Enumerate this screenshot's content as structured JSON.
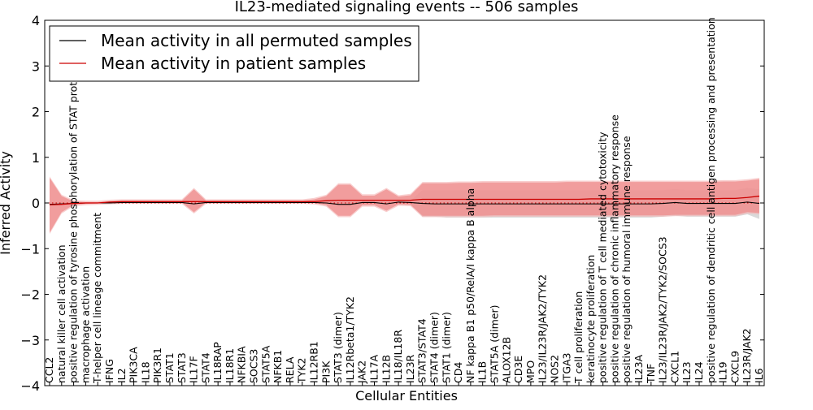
{
  "chart_data": {
    "type": "line",
    "title": "IL23-mediated signaling events -- 506 samples",
    "xlabel": "Cellular Entities",
    "ylabel": "Inferred Activity",
    "ylim": [
      -4,
      4
    ],
    "yticks": [
      "−4",
      "−3",
      "−2",
      "−1",
      "0",
      "1",
      "2",
      "3",
      "4"
    ],
    "ytick_values": [
      -4,
      -3,
      -2,
      -1,
      0,
      1,
      2,
      3,
      4
    ],
    "grid": false,
    "legend_position": "top-left",
    "categories": [
      "CCL2",
      "natural killer cell activation",
      "positive regulation of tyrosine phosphorylation of STAT protein",
      "macrophage activation",
      "T-helper cell lineage commitment",
      "IFNG",
      "IL2",
      "PIK3CA",
      "IL18",
      "PIK3R1",
      "STAT1",
      "STAT3",
      "IL17F",
      "STAT4",
      "IL18RAP",
      "IL18R1",
      "NFKBIA",
      "SOCS3",
      "STAT5A",
      "NFKB1",
      "RELA",
      "TYK2",
      "IL12RB1",
      "PI3K",
      "STAT3 (dimer)",
      "IL12Rbeta1/TYK2",
      "JAK2",
      "IL17A",
      "IL12B",
      "IL18/IL18R",
      "IL23R",
      "STAT3/STAT4",
      "STAT4 (dimer)",
      "STAT1 (dimer)",
      "CD4",
      "NF kappa B1 p50/RelA/I kappa B alpha",
      "IL1B",
      "STAT5A (dimer)",
      "ALOX12B",
      "CD3E",
      "MPO",
      "IL23/IL23R/JAK2/TYK2",
      "NOS2",
      "ITGA3",
      "T cell proliferation",
      "keratinocyte proliferation",
      "positive regulation of T cell mediated cytotoxicity",
      "positive regulation of chronic inflammatory response",
      "positive regulation of humoral immune response",
      "IL23A",
      "TNF",
      "IL23/IL23R/JAK2/TYK2/SOCS3",
      "CXCL1",
      "IL23",
      "IL24",
      "positive regulation of dendritic cell antigen processing and presentation",
      "IL19",
      "CXCL9",
      "IL23R/JAK2",
      "IL6"
    ],
    "series": [
      {
        "name": "Mean activity in all permuted samples",
        "color": "#000000",
        "values": [
          -0.03,
          -0.02,
          -0.01,
          0,
          0,
          0,
          0.01,
          0.01,
          0.01,
          0.01,
          0.01,
          0.01,
          -0.02,
          0.01,
          0.01,
          0.01,
          0.01,
          0.01,
          0.01,
          0.01,
          0.01,
          0.01,
          0.01,
          0,
          -0.03,
          -0.03,
          0.01,
          0.01,
          -0.02,
          0.02,
          0.01,
          -0.01,
          -0.02,
          -0.02,
          -0.02,
          -0.02,
          -0.02,
          -0.02,
          -0.02,
          -0.02,
          -0.02,
          -0.02,
          -0.02,
          -0.02,
          -0.02,
          -0.02,
          -0.02,
          -0.02,
          -0.02,
          -0.02,
          -0.02,
          -0.01,
          0.01,
          -0.01,
          -0.01,
          -0.01,
          -0.01,
          -0.01,
          0.02,
          -0.01
        ],
        "band_lower": [
          -0.06,
          -0.05,
          -0.02,
          -0.01,
          -0.01,
          -0.01,
          0,
          0,
          0,
          0,
          0,
          0,
          -0.04,
          0,
          0,
          0,
          0,
          0,
          0,
          0,
          0,
          0,
          0,
          -0.02,
          -0.06,
          -0.06,
          -0.02,
          -0.02,
          -0.05,
          -0.01,
          -0.03,
          -0.3,
          -0.3,
          -0.32,
          -0.32,
          -0.32,
          -0.32,
          -0.32,
          -0.32,
          -0.32,
          -0.32,
          -0.32,
          -0.32,
          -0.32,
          -0.32,
          -0.32,
          -0.32,
          -0.32,
          -0.32,
          -0.32,
          -0.32,
          -0.3,
          -0.28,
          -0.3,
          -0.3,
          -0.3,
          -0.3,
          -0.3,
          -0.25,
          -0.35
        ],
        "band_upper": [
          0.02,
          0.02,
          0.01,
          0.01,
          0.01,
          0.01,
          0.02,
          0.02,
          0.02,
          0.02,
          0.02,
          0.02,
          0.01,
          0.02,
          0.02,
          0.02,
          0.02,
          0.02,
          0.02,
          0.02,
          0.02,
          0.02,
          0.02,
          0.03,
          0.02,
          0.02,
          0.04,
          0.04,
          0.02,
          0.05,
          0.05,
          0.28,
          0.28,
          0.28,
          0.28,
          0.28,
          0.28,
          0.28,
          0.28,
          0.28,
          0.28,
          0.28,
          0.28,
          0.28,
          0.28,
          0.28,
          0.28,
          0.28,
          0.28,
          0.28,
          0.28,
          0.28,
          0.3,
          0.28,
          0.28,
          0.28,
          0.28,
          0.28,
          0.33,
          0.3
        ]
      },
      {
        "name": "Mean activity in patient samples",
        "color": "#cc0000",
        "values": [
          -0.04,
          -0.03,
          -0.01,
          0,
          0,
          0.02,
          0.03,
          0.03,
          0.03,
          0.03,
          0.03,
          0.03,
          0.03,
          0.03,
          0.03,
          0.03,
          0.03,
          0.03,
          0.03,
          0.03,
          0.03,
          0.03,
          0.03,
          0.05,
          0.06,
          0.06,
          0.06,
          0.06,
          0.06,
          0.06,
          0.06,
          0.08,
          0.08,
          0.08,
          0.08,
          0.08,
          0.08,
          0.08,
          0.08,
          0.08,
          0.08,
          0.08,
          0.08,
          0.08,
          0.08,
          0.09,
          0.09,
          0.09,
          0.09,
          0.09,
          0.09,
          0.09,
          0.09,
          0.09,
          0.09,
          0.09,
          0.1,
          0.1,
          0.12,
          0.15
        ],
        "band_lower": [
          -0.65,
          -0.2,
          -0.04,
          -0.02,
          -0.01,
          0,
          0.01,
          0.01,
          0.01,
          0.01,
          0.01,
          0.01,
          -0.2,
          0.01,
          0.01,
          0.01,
          0.01,
          0.01,
          0.01,
          0.01,
          0.01,
          0.01,
          0,
          -0.05,
          -0.28,
          -0.28,
          -0.05,
          -0.05,
          -0.17,
          -0.03,
          -0.04,
          -0.28,
          -0.28,
          -0.28,
          -0.28,
          -0.28,
          -0.28,
          -0.27,
          -0.27,
          -0.27,
          -0.27,
          -0.27,
          -0.27,
          -0.27,
          -0.27,
          -0.27,
          -0.27,
          -0.27,
          -0.27,
          -0.27,
          -0.27,
          -0.27,
          -0.26,
          -0.26,
          -0.26,
          -0.26,
          -0.26,
          -0.26,
          -0.2,
          -0.22
        ],
        "band_upper": [
          0.55,
          0.15,
          0.03,
          0.02,
          0.02,
          0.04,
          0.05,
          0.05,
          0.05,
          0.05,
          0.05,
          0.05,
          0.3,
          0.05,
          0.05,
          0.05,
          0.05,
          0.05,
          0.05,
          0.05,
          0.05,
          0.05,
          0.08,
          0.15,
          0.4,
          0.4,
          0.16,
          0.16,
          0.3,
          0.14,
          0.17,
          0.43,
          0.43,
          0.43,
          0.44,
          0.44,
          0.45,
          0.45,
          0.45,
          0.45,
          0.45,
          0.45,
          0.45,
          0.46,
          0.46,
          0.46,
          0.46,
          0.46,
          0.46,
          0.46,
          0.46,
          0.46,
          0.46,
          0.46,
          0.46,
          0.46,
          0.47,
          0.47,
          0.49,
          0.52
        ]
      }
    ]
  },
  "colors": {
    "patient_line": "#cc0000",
    "patient_band": "#ee8888",
    "patient_band_outer": "#f5b5b5",
    "permuted_line": "#000000",
    "permuted_band": "#cccccc",
    "zero_line": "#cc0000"
  }
}
